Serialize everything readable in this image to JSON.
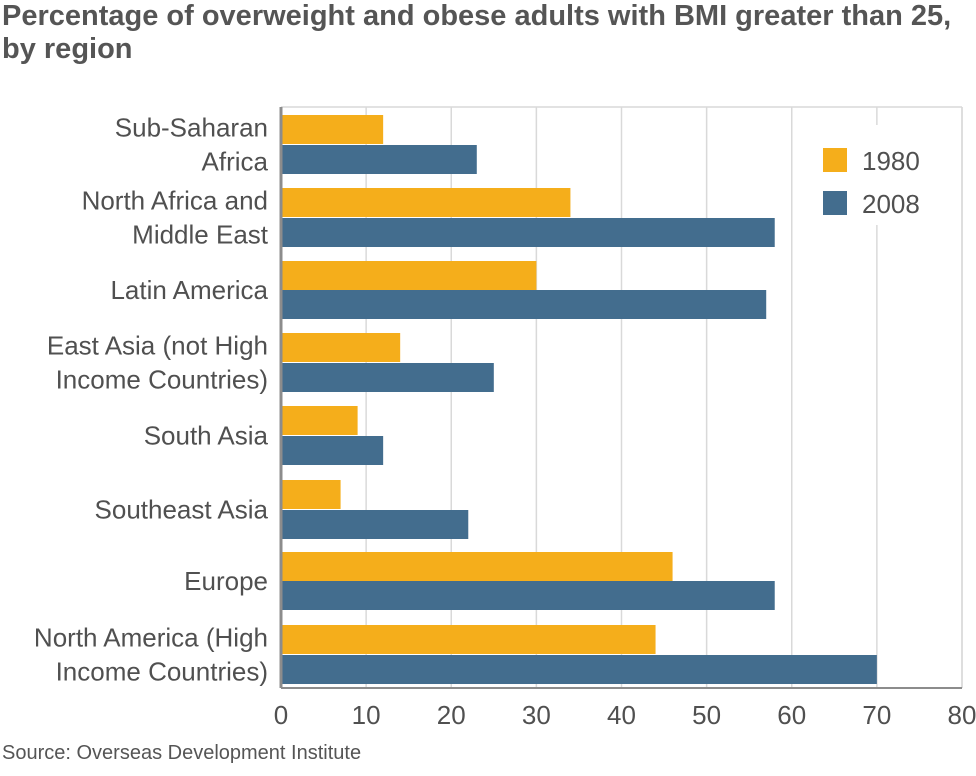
{
  "title": "Percentage of overweight and obese adults with BMI greater than 25, by region",
  "source": "Source: Overseas Development Institute",
  "colors": {
    "s1980": "#f5ae1b",
    "s2008": "#436d8e",
    "grid": "#d9d9d9",
    "axis": "#8c8c8c"
  },
  "chart_data": {
    "type": "bar",
    "orientation": "horizontal",
    "title": "Percentage of overweight and obese adults with BMI greater than 25, by region",
    "categories": [
      [
        "Sub-Saharan",
        "Africa"
      ],
      [
        "North Africa and",
        "Middle East"
      ],
      [
        "Latin America"
      ],
      [
        "East Asia (not High",
        "Income Countries)"
      ],
      [
        "South Asia"
      ],
      [
        "Southeast Asia"
      ],
      [
        "Europe"
      ],
      [
        "North America (High",
        "Income Countries)"
      ]
    ],
    "series": [
      {
        "name": "1980",
        "values": [
          12,
          34,
          30,
          14,
          9,
          7,
          46,
          44
        ]
      },
      {
        "name": "2008",
        "values": [
          23,
          58,
          57,
          25,
          12,
          22,
          58,
          70
        ]
      }
    ],
    "xlim": [
      0,
      80
    ],
    "xticks": [
      0,
      10,
      20,
      30,
      40,
      50,
      60,
      70,
      80
    ],
    "grid": true,
    "legend": "top-right"
  }
}
